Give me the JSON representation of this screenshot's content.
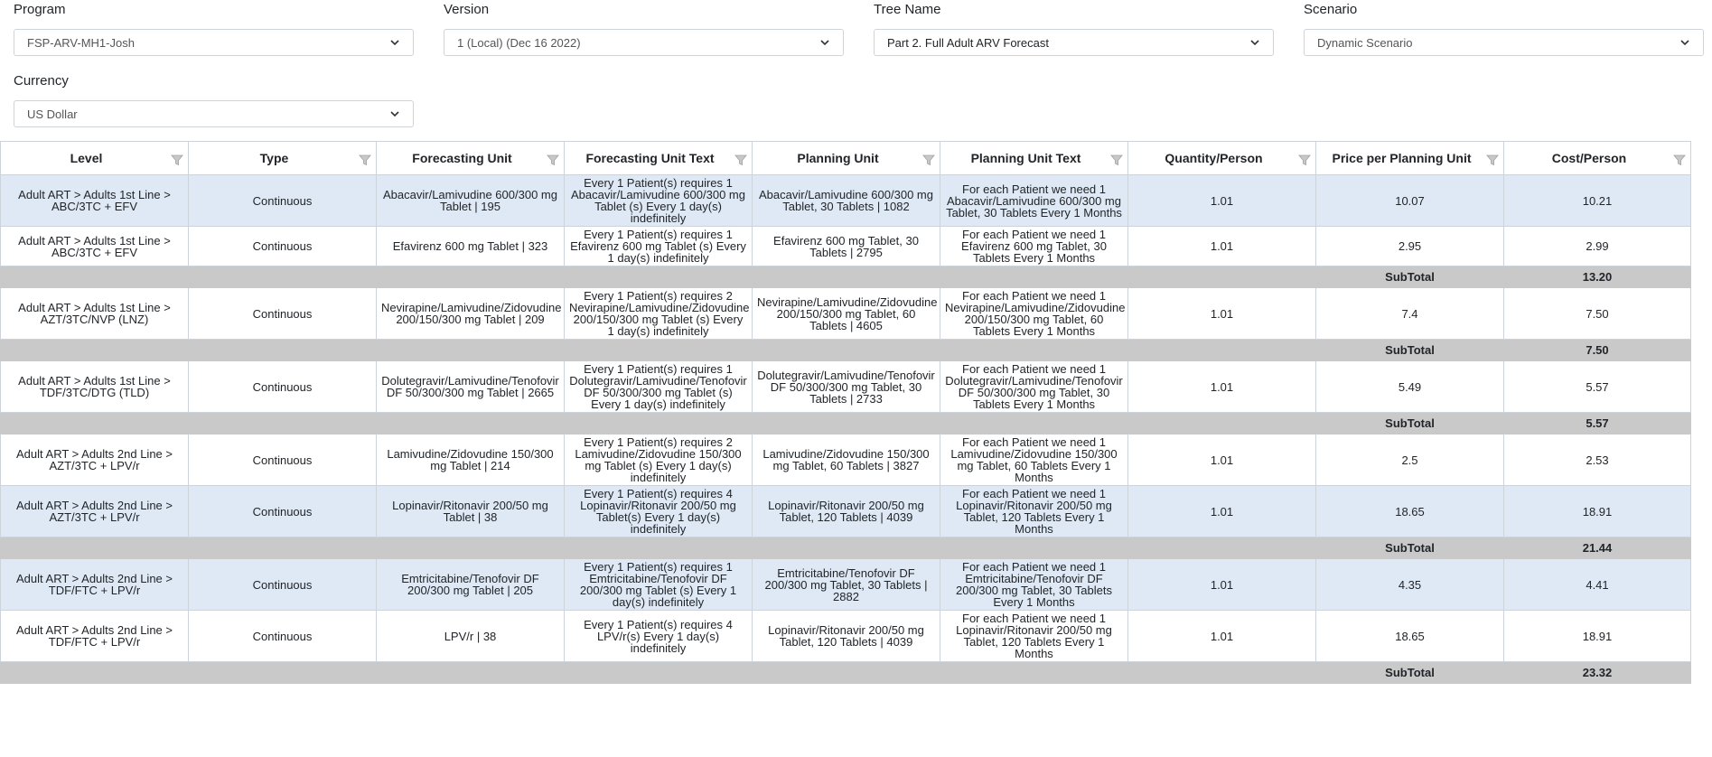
{
  "filters": {
    "program": {
      "label": "Program",
      "value": "FSP-ARV-MH1-Josh"
    },
    "version": {
      "label": "Version",
      "value": "1 (Local) (Dec 16 2022)"
    },
    "tree": {
      "label": "Tree Name",
      "value": "Part 2. Full Adult ARV Forecast"
    },
    "scenario": {
      "label": "Scenario",
      "value": "Dynamic Scenario"
    },
    "currency": {
      "label": "Currency",
      "value": "US Dollar"
    }
  },
  "table": {
    "headers": [
      "Level",
      "Type",
      "Forecasting Unit",
      "Forecasting Unit Text",
      "Planning Unit",
      "Planning Unit Text",
      "Quantity/Person",
      "Price per Planning Unit",
      "Cost/Person"
    ],
    "subtotal_label": "SubTotal",
    "rows": [
      {
        "kind": "data",
        "shaded": true,
        "level": "Adult ART > Adults 1st Line > ABC/3TC + EFV",
        "type": "Continuous",
        "fu": "Abacavir/Lamivudine 600/300 mg Tablet  | 195",
        "fu_text": "Every 1 Patient(s) requires 1 Abacavir/Lamivudine 600/300 mg Tablet (s) Every 1 day(s) indefinitely",
        "pu": "Abacavir/Lamivudine 600/300 mg Tablet, 30 Tablets | 1082",
        "pu_text": "For each Patient we need 1 Abacavir/Lamivudine 600/300 mg Tablet, 30 Tablets Every 1 Months",
        "qty": "1.01",
        "price": "10.07",
        "cost": "10.21"
      },
      {
        "kind": "data",
        "shaded": false,
        "level": "Adult ART > Adults 1st Line > ABC/3TC + EFV",
        "type": "Continuous",
        "fu": "Efavirenz 600 mg Tablet  | 323",
        "fu_text": "Every 1 Patient(s) requires 1 Efavirenz 600 mg Tablet (s) Every 1 day(s) indefinitely",
        "pu": "Efavirenz 600 mg Tablet, 30 Tablets | 2795",
        "pu_text": "For each Patient we need 1 Efavirenz 600 mg Tablet, 30 Tablets Every 1 Months",
        "qty": "1.01",
        "price": "2.95",
        "cost": "2.99"
      },
      {
        "kind": "subtotal",
        "cost": "13.20"
      },
      {
        "kind": "data",
        "shaded": false,
        "level": "Adult ART > Adults 1st Line > AZT/3TC/NVP (LNZ)",
        "type": "Continuous",
        "fu": "Nevirapine/Lamivudine/Zidovudine 200/150/300 mg Tablet  | 209",
        "fu_text": "Every 1 Patient(s) requires 2 Nevirapine/Lamivudine/Zidovudine 200/150/300 mg Tablet (s) Every 1 day(s) indefinitely",
        "pu": "Nevirapine/Lamivudine/Zidovudine 200/150/300 mg Tablet, 60 Tablets | 4605",
        "pu_text": "For each Patient we need 1 Nevirapine/Lamivudine/Zidovudine 200/150/300 mg Tablet, 60 Tablets Every 1 Months",
        "qty": "1.01",
        "price": "7.4",
        "cost": "7.50"
      },
      {
        "kind": "subtotal",
        "cost": "7.50"
      },
      {
        "kind": "data",
        "shaded": false,
        "level": "Adult ART > Adults 1st Line > TDF/3TC/DTG (TLD)",
        "type": "Continuous",
        "fu": "Dolutegravir/Lamivudine/Tenofovir DF 50/300/300 mg Tablet  | 2665",
        "fu_text": "Every 1 Patient(s) requires 1 Dolutegravir/Lamivudine/Tenofovir DF 50/300/300 mg Tablet (s) Every 1 day(s) indefinitely",
        "pu": "Dolutegravir/Lamivudine/Tenofovir DF 50/300/300 mg Tablet, 30 Tablets | 2733",
        "pu_text": "For each Patient we need 1 Dolutegravir/Lamivudine/Tenofovir DF 50/300/300 mg Tablet, 30 Tablets Every 1 Months",
        "qty": "1.01",
        "price": "5.49",
        "cost": "5.57"
      },
      {
        "kind": "subtotal",
        "cost": "5.57"
      },
      {
        "kind": "data",
        "shaded": false,
        "level": "Adult ART > Adults 2nd Line > AZT/3TC + LPV/r",
        "type": "Continuous",
        "fu": "Lamivudine/Zidovudine 150/300 mg Tablet  | 214",
        "fu_text": "Every 1 Patient(s) requires 2 Lamivudine/Zidovudine 150/300 mg Tablet (s) Every 1 day(s) indefinitely",
        "pu": "Lamivudine/Zidovudine 150/300 mg Tablet, 60 Tablets | 3827",
        "pu_text": "For each Patient we need 1 Lamivudine/Zidovudine 150/300 mg Tablet, 60 Tablets Every 1 Months",
        "qty": "1.01",
        "price": "2.5",
        "cost": "2.53"
      },
      {
        "kind": "data",
        "shaded": true,
        "level": "Adult ART > Adults 2nd Line > AZT/3TC + LPV/r",
        "type": "Continuous",
        "fu": "Lopinavir/Ritonavir 200/50 mg Tablet | 38",
        "fu_text": "Every 1 Patient(s) requires 4 Lopinavir/Ritonavir 200/50 mg Tablet(s) Every 1 day(s) indefinitely",
        "pu": "Lopinavir/Ritonavir 200/50 mg Tablet, 120 Tablets | 4039",
        "pu_text": "For each Patient we need 1 Lopinavir/Ritonavir 200/50 mg Tablet, 120 Tablets Every 1 Months",
        "qty": "1.01",
        "price": "18.65",
        "cost": "18.91"
      },
      {
        "kind": "subtotal",
        "cost": "21.44"
      },
      {
        "kind": "data",
        "shaded": true,
        "level": "Adult ART > Adults 2nd Line > TDF/FTC + LPV/r",
        "type": "Continuous",
        "fu": "Emtricitabine/Tenofovir DF 200/300 mg Tablet  | 205",
        "fu_text": "Every 1 Patient(s) requires 1 Emtricitabine/Tenofovir DF 200/300 mg Tablet (s) Every 1 day(s) indefinitely",
        "pu": "Emtricitabine/Tenofovir DF 200/300 mg Tablet, 30 Tablets | 2882",
        "pu_text": "For each Patient we need 1 Emtricitabine/Tenofovir DF 200/300 mg Tablet, 30 Tablets Every 1 Months",
        "qty": "1.01",
        "price": "4.35",
        "cost": "4.41"
      },
      {
        "kind": "data",
        "shaded": false,
        "level": "Adult ART > Adults 2nd Line > TDF/FTC + LPV/r",
        "type": "Continuous",
        "fu": "LPV/r | 38",
        "fu_text": "Every 1 Patient(s) requires 4 LPV/r(s) Every 1 day(s) indefinitely",
        "pu": "Lopinavir/Ritonavir 200/50 mg Tablet, 120 Tablets | 4039",
        "pu_text": "For each Patient we need 1 Lopinavir/Ritonavir 200/50 mg Tablet, 120 Tablets Every 1 Months",
        "qty": "1.01",
        "price": "18.65",
        "cost": "18.91"
      },
      {
        "kind": "subtotal",
        "cost": "23.32"
      }
    ]
  }
}
